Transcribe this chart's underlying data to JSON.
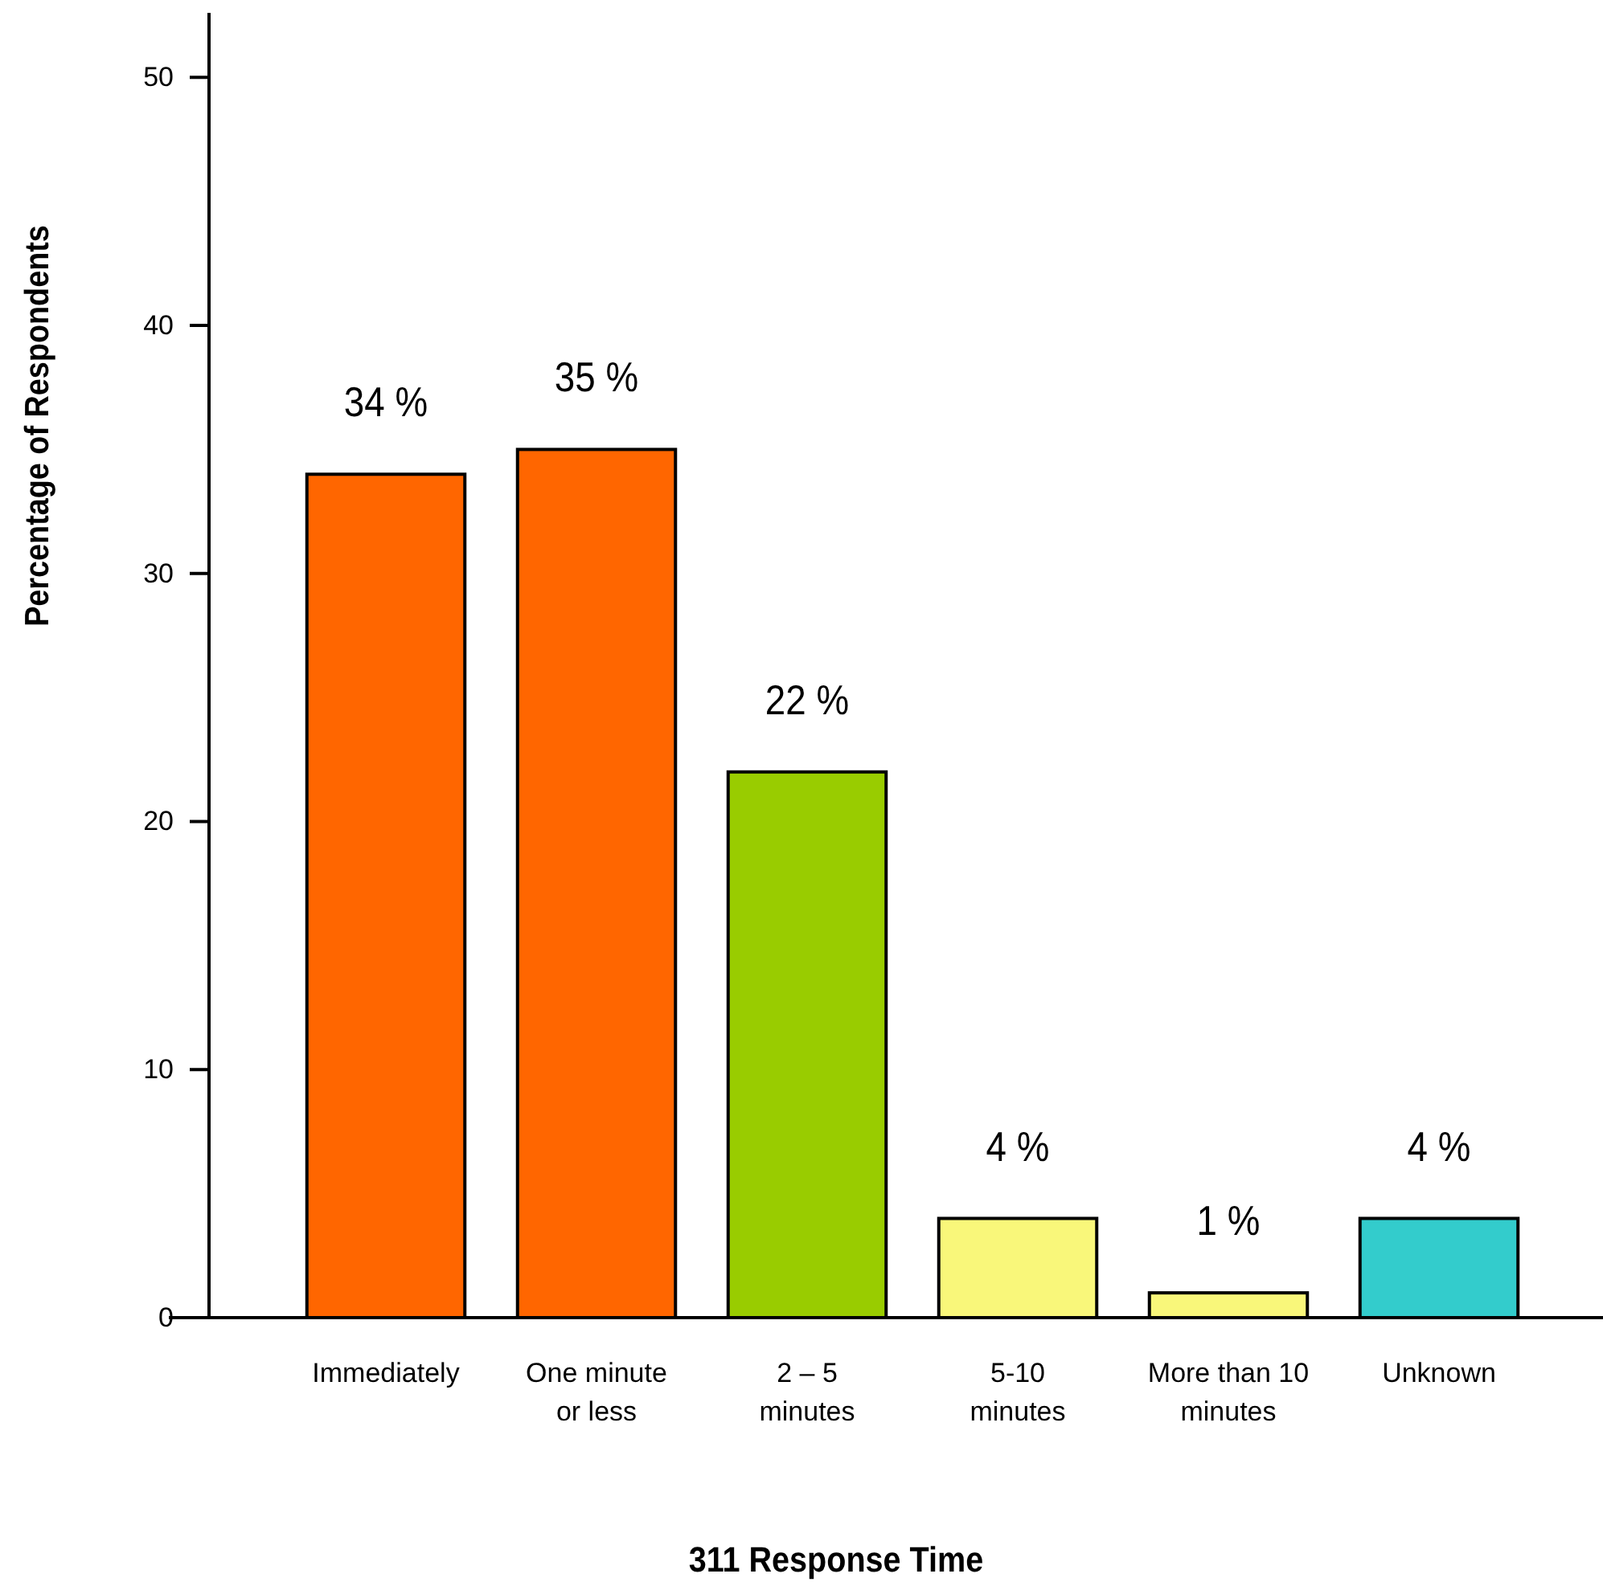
{
  "chart_data": {
    "type": "bar",
    "xlabel": "311 Response Time",
    "ylabel": "Percentage of Respondents",
    "categories": [
      "Immediately",
      "One minute\nor less",
      "2 – 5\nminutes",
      "5-10\nminutes",
      "More than 10\nminutes",
      "Unknown"
    ],
    "values": [
      34,
      35,
      22,
      4,
      1,
      4
    ],
    "colors": [
      "#ff6600",
      "#ff6600",
      "#99cc00",
      "#f9f77a",
      "#f9f77a",
      "#33cccc"
    ],
    "value_labels": [
      "34 %",
      "35 %",
      "22 %",
      "4 %",
      "1 %",
      "4 %"
    ],
    "ylim": [
      0,
      52.6
    ],
    "yticks": [
      0,
      10,
      20,
      30,
      40,
      50
    ],
    "grid": false
  }
}
